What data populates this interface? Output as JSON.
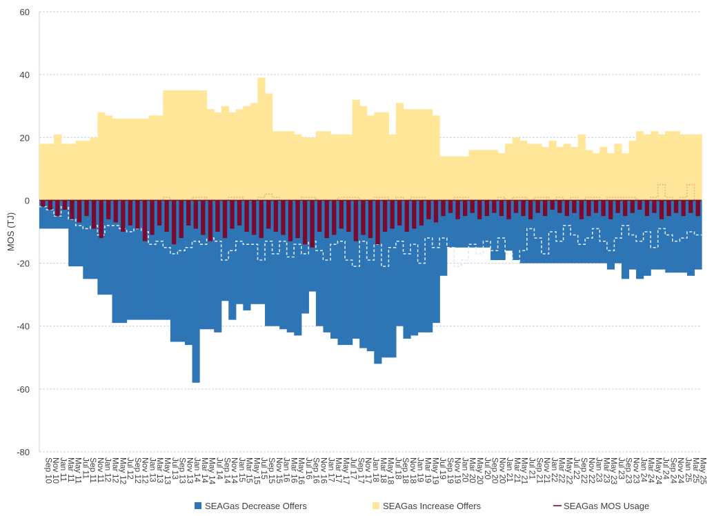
{
  "chart_data": {
    "type": "bar",
    "ylabel": "MOS (TJ)",
    "ylim": [
      -80,
      60
    ],
    "yticks": [
      60,
      40,
      20,
      0,
      -20,
      -40,
      -60,
      -80
    ],
    "grid": true,
    "legend_position": "bottom",
    "x_tick_labels": [
      "Sep 10",
      "Nov 10",
      "Jan 11",
      "Mar 11",
      "May 11",
      "Jul 11",
      "Sep 11",
      "Nov 11",
      "Jan 12",
      "Mar 12",
      "May 12",
      "Jul 12",
      "Sep 12",
      "Nov 12",
      "Jan 13",
      "Mar 13",
      "May 13",
      "Jul 13",
      "Sep 13",
      "Nov 13",
      "Jan 14",
      "Mar 14",
      "May 14",
      "Jul 14",
      "Sep 14",
      "Nov 14",
      "Jan 15",
      "Mar 15",
      "May 15",
      "Jul 15",
      "Sep 15",
      "Nov 15",
      "Jan 16",
      "Mar 16",
      "May 16",
      "Jul 16",
      "Sep 16",
      "Nov 16",
      "Jan 17",
      "Mar 17",
      "May 17",
      "Jul 17",
      "Sep 17",
      "Nov 17",
      "Jan 18",
      "Mar 18",
      "May 18",
      "Jul 18",
      "Sep 18",
      "Nov 18",
      "Jan 19",
      "Mar 19",
      "May 19",
      "Jul 19",
      "Sep 19",
      "Nov 19",
      "Jan 20",
      "Mar 20",
      "May 20",
      "Jul 20",
      "Sep 20",
      "Nov 20",
      "Jan 21",
      "Mar 21",
      "May 21",
      "Jul 21",
      "Sep 21",
      "Nov 21",
      "Jan 22",
      "Mar 22",
      "May 22",
      "Jul 22",
      "Sep 22",
      "Nov 22",
      "Jan 23",
      "Mar 23",
      "May 23",
      "Jul 23",
      "Sep 23",
      "Nov 23",
      "Jan 24",
      "Mar 24",
      "May 24",
      "Jul 24",
      "Sep 24",
      "Nov 24",
      "Jan 25",
      "Mar 25",
      "May 25"
    ],
    "series": [
      {
        "name": "SEAGas Decrease Offers",
        "color": "#2e75b6",
        "values": [
          -9,
          -9,
          -9,
          -9,
          -21,
          -21,
          -25,
          -25,
          -30,
          -30,
          -39,
          -39,
          -38,
          -38,
          -38,
          -38,
          -38,
          -38,
          -45,
          -45,
          -46,
          -58,
          -41,
          -41,
          -42,
          -32,
          -38,
          -33,
          -35,
          -33,
          -33,
          -40,
          -40,
          -41,
          -42,
          -43,
          -36,
          -29,
          -40,
          -42,
          -44,
          -46,
          -46,
          -44,
          -47,
          -48,
          -52,
          -50,
          -50,
          -40,
          -44,
          -43,
          -42,
          -42,
          -39,
          -24,
          -15,
          -15,
          -15,
          -15,
          -15,
          -15,
          -19,
          -19,
          -16,
          -19,
          -20,
          -20,
          -20,
          -20,
          -20,
          -20,
          -20,
          -20,
          -20,
          -20,
          -20,
          -20,
          -22,
          -20,
          -25,
          -22,
          -25,
          -24,
          -22,
          -22,
          -23,
          -23,
          -23,
          -24,
          -22
        ]
      },
      {
        "name": "SEAGas Increase Offers",
        "color": "#ffe699",
        "values": [
          18,
          18,
          21,
          18,
          18,
          19,
          19,
          20,
          28,
          27,
          26,
          26,
          26,
          26,
          26,
          27,
          27,
          35,
          35,
          35,
          35,
          35,
          35,
          29,
          28,
          30,
          28,
          29,
          30,
          31,
          39,
          34,
          22,
          22,
          22,
          21,
          20,
          20,
          22,
          22,
          21,
          21,
          21,
          32,
          30,
          27,
          28,
          28,
          21,
          31,
          29,
          29,
          29,
          29,
          27,
          14,
          14,
          14,
          14,
          16,
          16,
          16,
          16,
          15,
          18,
          20,
          19,
          18,
          18,
          17,
          19,
          17,
          18,
          17,
          21,
          16,
          15,
          17,
          15,
          18,
          15,
          19,
          22,
          21,
          22,
          21,
          22,
          22,
          21,
          21,
          21
        ]
      },
      {
        "name": "SEAGas MOS Usage",
        "color": "#7a0a2e",
        "values": [
          -2,
          -3,
          -5,
          -3,
          -6,
          -7,
          -5,
          -9,
          -12,
          -6,
          -7,
          -10,
          -8,
          -9,
          -13,
          -11,
          -8,
          -10,
          -14,
          -12,
          -8,
          -9,
          -11,
          -13,
          -10,
          -12,
          -9,
          -8,
          -10,
          -11,
          -12,
          -9,
          -10,
          -11,
          -13,
          -12,
          -14,
          -15,
          -10,
          -12,
          -11,
          -9,
          -10,
          -13,
          -11,
          -12,
          -14,
          -10,
          -9,
          -8,
          -10,
          -9,
          -8,
          -6,
          -7,
          -5,
          -4,
          -6,
          -5,
          -4,
          -6,
          -5,
          -4,
          -5,
          -6,
          -4,
          -5,
          -6,
          -4,
          -5,
          -3,
          -4,
          -5,
          -4,
          -6,
          -5,
          -4,
          -5,
          -6,
          -4,
          -5,
          -4,
          -3,
          -5,
          -4,
          -6,
          -5,
          -4,
          -5,
          -4,
          -5
        ]
      }
    ],
    "annotations": [
      {
        "name": "decrease-threshold",
        "color": "#dbe9f6",
        "style": "dashed",
        "values": [
          -2,
          -3,
          -5,
          -2,
          -6,
          -8,
          -9,
          -8,
          -11,
          -8,
          -8,
          -9,
          -10,
          -9,
          -10,
          -14,
          -13,
          -15,
          -17,
          -16,
          -15,
          -13,
          -14,
          -12,
          -13,
          -19,
          -16,
          -13,
          -14,
          -14,
          -19,
          -13,
          -17,
          -13,
          -18,
          -14,
          -17,
          -13,
          -16,
          -19,
          -14,
          -13,
          -19,
          -21,
          -13,
          -19,
          -14,
          -21,
          -15,
          -13,
          -17,
          -14,
          -20,
          -12,
          -15,
          -12,
          -15,
          -21,
          -19,
          -14,
          -17,
          -13,
          -16,
          -12,
          -17,
          -20,
          -16,
          -9,
          -12,
          -17,
          -10,
          -13,
          -8,
          -11,
          -14,
          -12,
          -9,
          -13,
          -16,
          -12,
          -8,
          -11,
          -13,
          -10,
          -15,
          -9,
          -11,
          -13,
          -12,
          -10,
          -11
        ]
      },
      {
        "name": "increase-threshold",
        "color": "#f4b183",
        "style": "dotted",
        "values": [
          0,
          0,
          0,
          0,
          0,
          0,
          0,
          0,
          0,
          0,
          0,
          0,
          0,
          0,
          0,
          0,
          0,
          1,
          0,
          0,
          0,
          1,
          1,
          0,
          0,
          0,
          1,
          1,
          0,
          0,
          1,
          2,
          1,
          0,
          0,
          0,
          1,
          1,
          0,
          0,
          0,
          1,
          1,
          1,
          0,
          0,
          1,
          1,
          0,
          1,
          0,
          1,
          1,
          0,
          0,
          0,
          0,
          1,
          1,
          0,
          0,
          0,
          0,
          1,
          0,
          1,
          1,
          0,
          1,
          1,
          0,
          1,
          0,
          1,
          0,
          1,
          1,
          0,
          1,
          1,
          1,
          1,
          0,
          0,
          1,
          5,
          1,
          0,
          1,
          5,
          0
        ]
      }
    ]
  }
}
